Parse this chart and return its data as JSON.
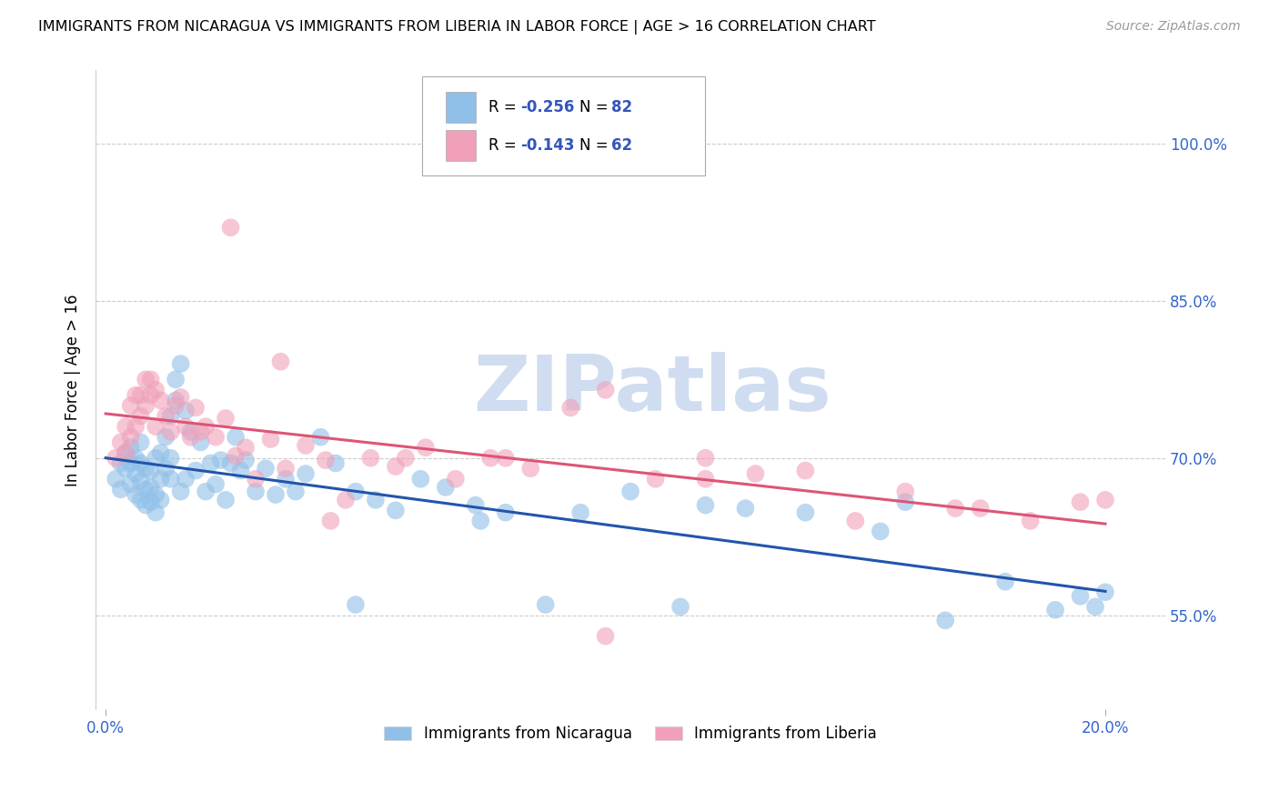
{
  "title": "IMMIGRANTS FROM NICARAGUA VS IMMIGRANTS FROM LIBERIA IN LABOR FORCE | AGE > 16 CORRELATION CHART",
  "source": "Source: ZipAtlas.com",
  "ylabel": "In Labor Force | Age > 16",
  "xlabel_ticks_vals": [
    0.0,
    0.2
  ],
  "xlabel_ticks_labels": [
    "0.0%",
    "20.0%"
  ],
  "ylabel_ticks_vals": [
    0.55,
    0.7,
    0.85,
    1.0
  ],
  "ylabel_ticks_labels": [
    "55.0%",
    "70.0%",
    "85.0%",
    "100.0%"
  ],
  "xlim": [
    -0.002,
    0.212
  ],
  "ylim": [
    0.46,
    1.07
  ],
  "legend_label1": "Immigrants from Nicaragua",
  "legend_label2": "Immigrants from Liberia",
  "R1": -0.256,
  "N1": 82,
  "R2": -0.143,
  "N2": 62,
  "color1": "#90bfe8",
  "color2": "#f0a0b8",
  "trendline_color1": "#2255aa",
  "trendline_color2": "#dd5577",
  "watermark": "ZIPatlas",
  "watermark_color": "#c8d8ee",
  "grid_color": "#cccccc",
  "background_color": "#ffffff",
  "nic_x": [
    0.002,
    0.003,
    0.003,
    0.004,
    0.004,
    0.005,
    0.005,
    0.005,
    0.006,
    0.006,
    0.006,
    0.007,
    0.007,
    0.007,
    0.007,
    0.008,
    0.008,
    0.008,
    0.009,
    0.009,
    0.009,
    0.01,
    0.01,
    0.01,
    0.011,
    0.011,
    0.011,
    0.012,
    0.012,
    0.013,
    0.013,
    0.013,
    0.014,
    0.014,
    0.015,
    0.015,
    0.016,
    0.016,
    0.017,
    0.018,
    0.019,
    0.02,
    0.021,
    0.022,
    0.023,
    0.024,
    0.025,
    0.026,
    0.027,
    0.028,
    0.03,
    0.032,
    0.034,
    0.036,
    0.038,
    0.04,
    0.043,
    0.046,
    0.05,
    0.054,
    0.058,
    0.063,
    0.068,
    0.074,
    0.08,
    0.088,
    0.095,
    0.105,
    0.115,
    0.128,
    0.14,
    0.155,
    0.168,
    0.18,
    0.19,
    0.195,
    0.198,
    0.2,
    0.05,
    0.075,
    0.12,
    0.16
  ],
  "nic_y": [
    0.68,
    0.695,
    0.67,
    0.69,
    0.705,
    0.675,
    0.695,
    0.71,
    0.665,
    0.685,
    0.7,
    0.66,
    0.678,
    0.695,
    0.715,
    0.655,
    0.67,
    0.69,
    0.658,
    0.672,
    0.688,
    0.648,
    0.665,
    0.7,
    0.66,
    0.68,
    0.705,
    0.72,
    0.69,
    0.74,
    0.68,
    0.7,
    0.755,
    0.775,
    0.79,
    0.668,
    0.745,
    0.68,
    0.725,
    0.688,
    0.715,
    0.668,
    0.695,
    0.675,
    0.698,
    0.66,
    0.695,
    0.72,
    0.688,
    0.698,
    0.668,
    0.69,
    0.665,
    0.68,
    0.668,
    0.685,
    0.72,
    0.695,
    0.668,
    0.66,
    0.65,
    0.68,
    0.672,
    0.655,
    0.648,
    0.56,
    0.648,
    0.668,
    0.558,
    0.652,
    0.648,
    0.63,
    0.545,
    0.582,
    0.555,
    0.568,
    0.558,
    0.572,
    0.56,
    0.64,
    0.655,
    0.658
  ],
  "lib_x": [
    0.002,
    0.003,
    0.004,
    0.004,
    0.005,
    0.005,
    0.006,
    0.006,
    0.007,
    0.007,
    0.008,
    0.008,
    0.009,
    0.009,
    0.01,
    0.01,
    0.011,
    0.012,
    0.013,
    0.014,
    0.015,
    0.016,
    0.017,
    0.018,
    0.019,
    0.02,
    0.022,
    0.024,
    0.026,
    0.028,
    0.03,
    0.033,
    0.036,
    0.04,
    0.044,
    0.048,
    0.053,
    0.058,
    0.064,
    0.07,
    0.077,
    0.085,
    0.093,
    0.1,
    0.11,
    0.12,
    0.13,
    0.14,
    0.15,
    0.16,
    0.175,
    0.185,
    0.195,
    0.2,
    0.025,
    0.035,
    0.045,
    0.06,
    0.08,
    0.1,
    0.12,
    0.17
  ],
  "lib_y": [
    0.7,
    0.715,
    0.705,
    0.73,
    0.72,
    0.75,
    0.73,
    0.76,
    0.74,
    0.76,
    0.75,
    0.775,
    0.76,
    0.775,
    0.765,
    0.73,
    0.755,
    0.74,
    0.725,
    0.75,
    0.758,
    0.73,
    0.72,
    0.748,
    0.725,
    0.73,
    0.72,
    0.738,
    0.702,
    0.71,
    0.68,
    0.718,
    0.69,
    0.712,
    0.698,
    0.66,
    0.7,
    0.692,
    0.71,
    0.68,
    0.7,
    0.69,
    0.748,
    0.53,
    0.68,
    0.7,
    0.685,
    0.688,
    0.64,
    0.668,
    0.652,
    0.64,
    0.658,
    0.66,
    0.92,
    0.792,
    0.64,
    0.7,
    0.7,
    0.765,
    0.68,
    0.652
  ]
}
